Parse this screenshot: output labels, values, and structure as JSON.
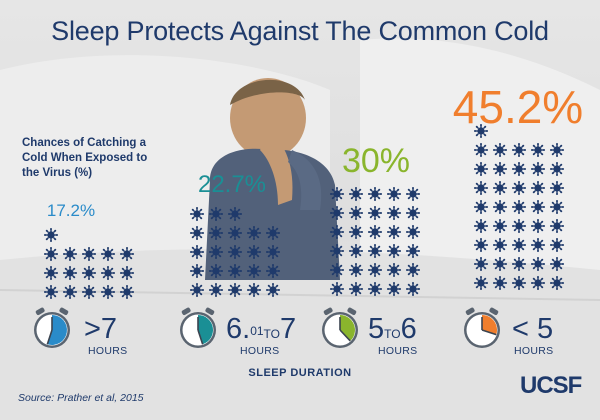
{
  "title": "Sleep Protects Against The Common Cold",
  "chart_data": {
    "type": "bar",
    "ylabel": "Chances of Catching a Cold When Exposed to the Virus (%)",
    "xlabel": "SLEEP DURATION",
    "categories": [
      ">7 HOURS",
      "6.01 TO 7 HOURS",
      "5 TO 6 HOURS",
      "< 5 HOURS"
    ],
    "values": [
      17.2,
      22.7,
      30,
      45.2
    ],
    "value_labels": [
      "17.2%",
      "22.7%",
      "30%",
      "45.2%"
    ],
    "colors": [
      "#2a8bc9",
      "#1a8f95",
      "#8ab52d",
      "#f07e2d"
    ]
  },
  "groups": [
    {
      "value_label": "17.2%",
      "num": ">7",
      "unit": "HOURS",
      "color": "#2a8bc9",
      "clock_icon": "clock-icon"
    },
    {
      "value_label": "22.7%",
      "num_a": "6.",
      "num_sup": "01",
      "num_mid": "TO",
      "num_b": "7",
      "unit": "HOURS",
      "color": "#1a8f95",
      "clock_icon": "clock-icon"
    },
    {
      "value_label": "30%",
      "num_a": "5",
      "num_mid": "TO",
      "num_b": "6",
      "unit": "HOURS",
      "color": "#8ab52d",
      "clock_icon": "clock-icon"
    },
    {
      "value_label": "45.2%",
      "num": "< 5",
      "unit": "HOURS",
      "color": "#f07e2d",
      "clock_icon": "clock-icon"
    }
  ],
  "source": "Source: Prather et al, 2015",
  "logo": "UCSF"
}
